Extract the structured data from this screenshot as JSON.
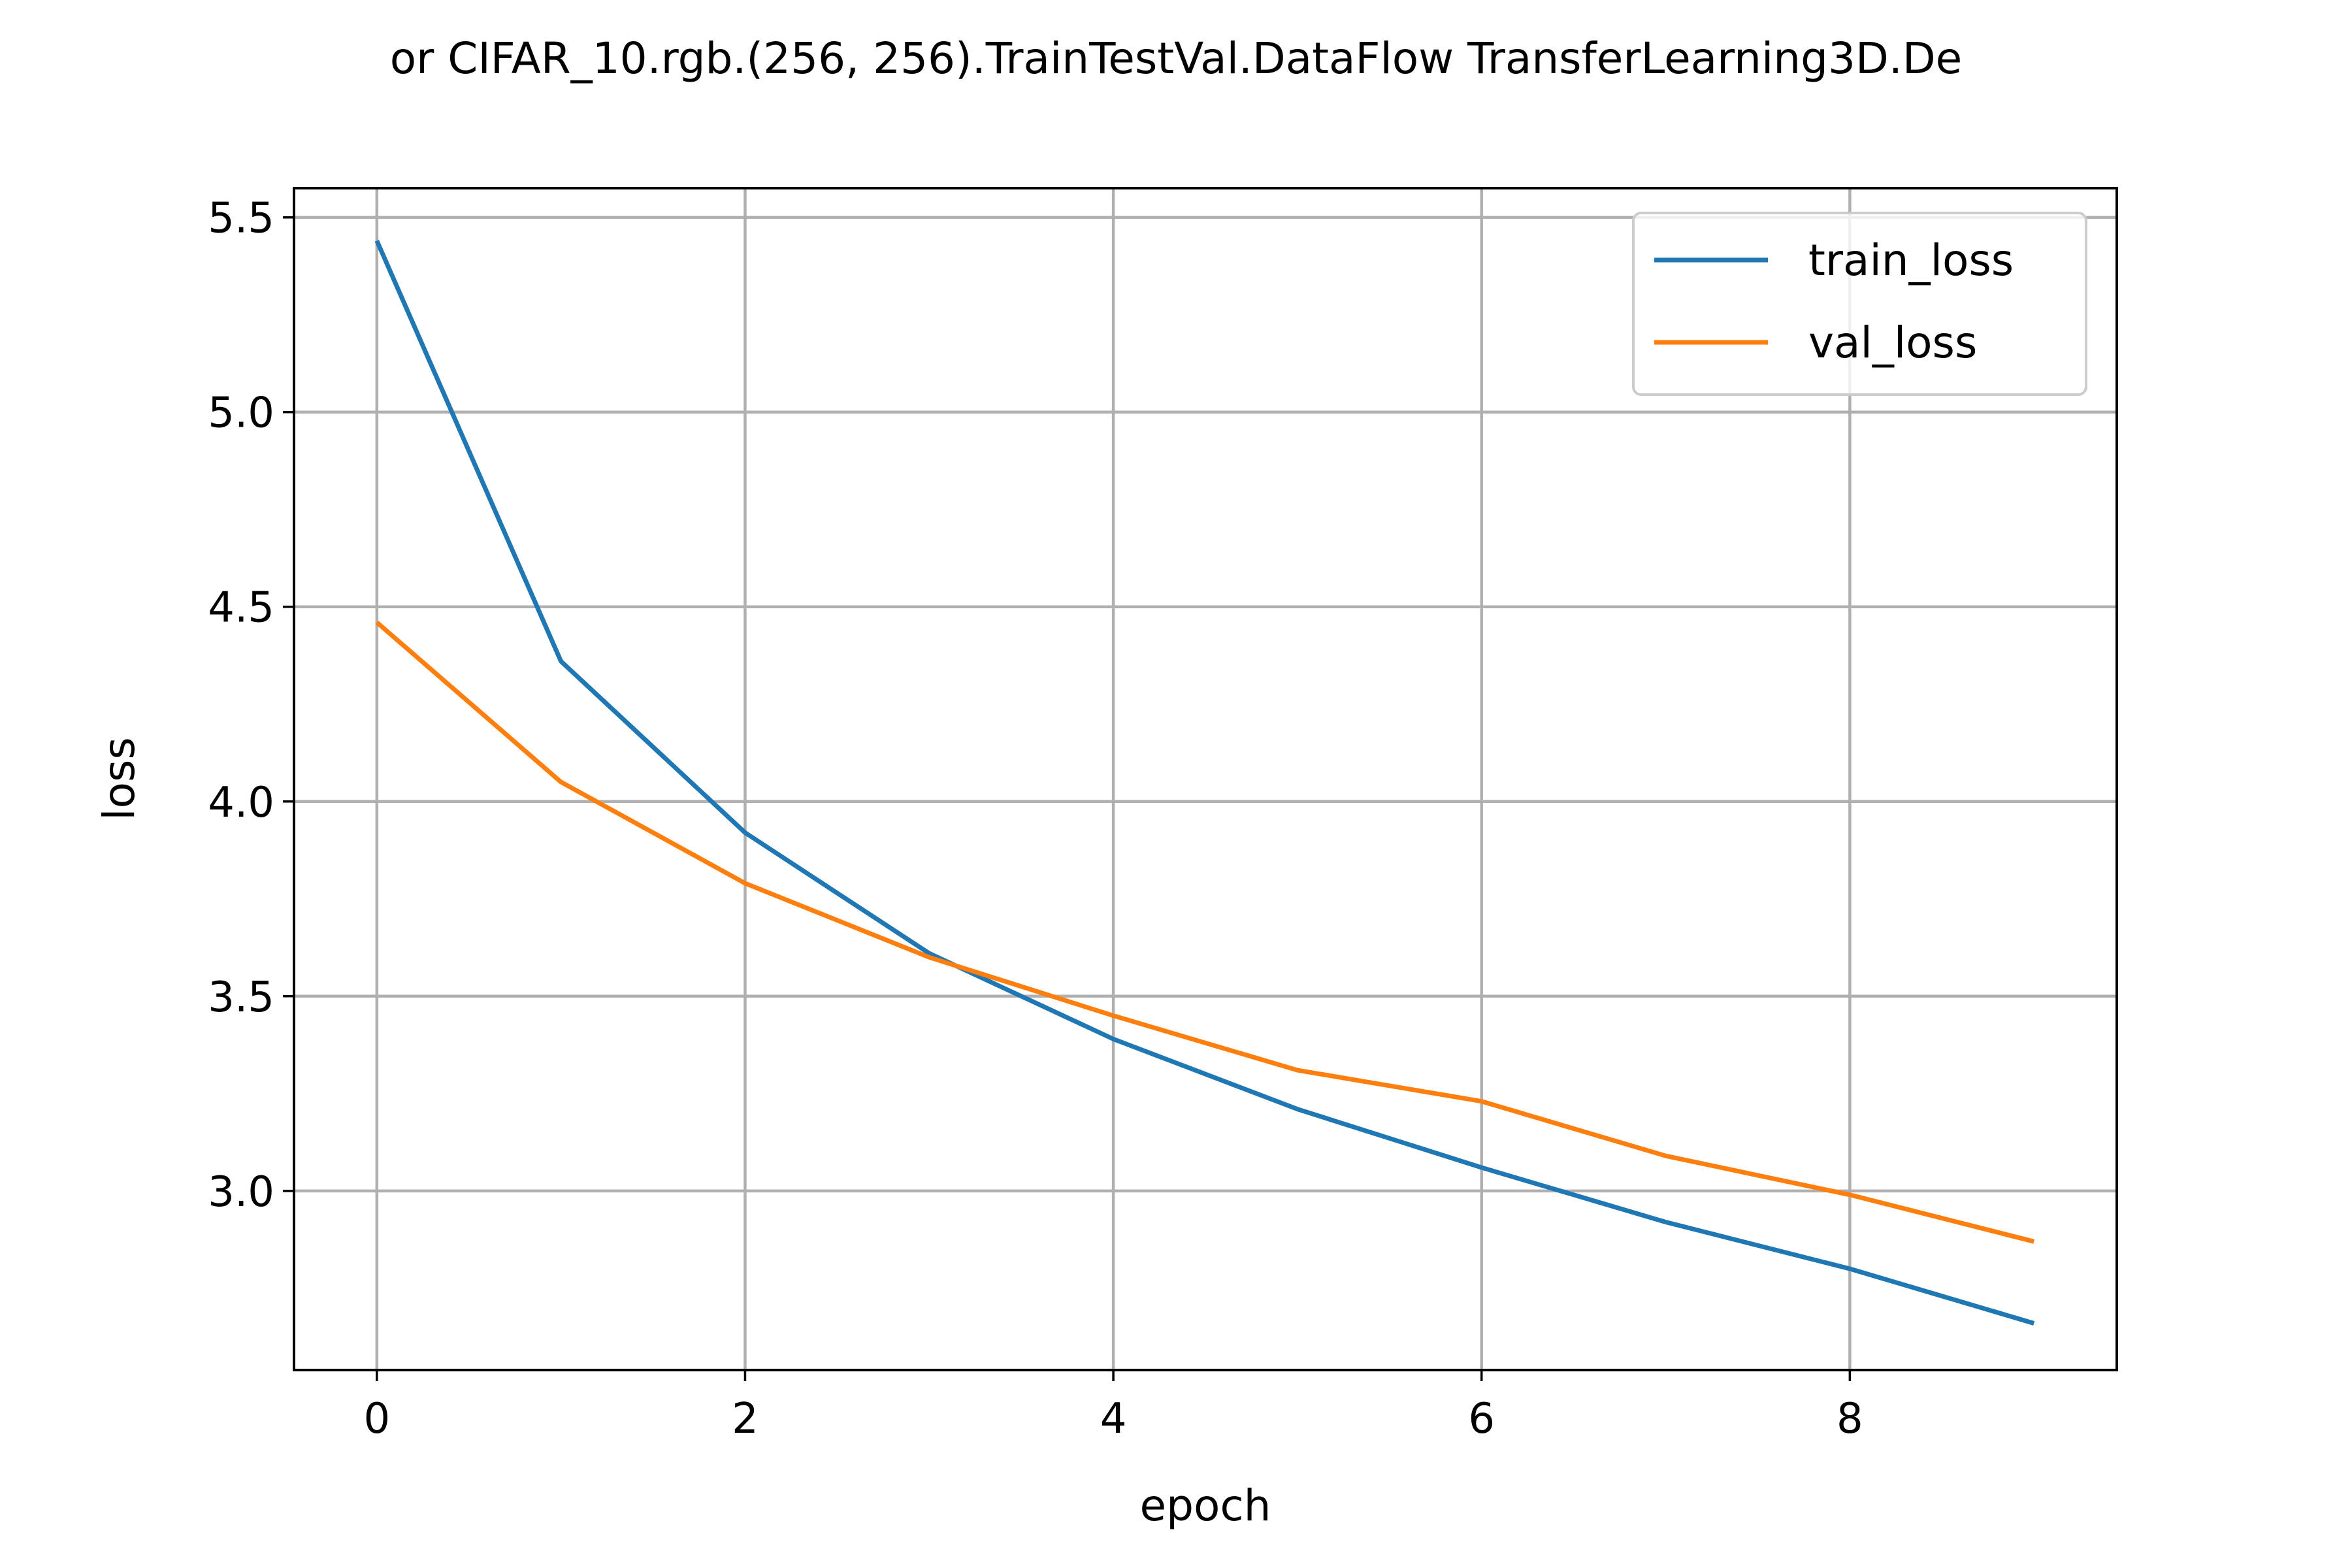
{
  "chart_data": {
    "type": "line",
    "title": "or CIFAR_10.rgb.(256, 256).TrainTestVal.DataFlow TransferLearning3D.De",
    "xlabel": "epoch",
    "ylabel": "loss",
    "xlim": [
      -0.45,
      9.45
    ],
    "ylim": [
      2.54,
      5.575
    ],
    "xticks": [
      0,
      2,
      4,
      6,
      8
    ],
    "yticks": [
      3.0,
      3.5,
      4.0,
      4.5,
      5.0,
      5.5
    ],
    "xtick_labels": [
      "0",
      "2",
      "4",
      "6",
      "8"
    ],
    "ytick_labels": [
      "3.0",
      "3.5",
      "4.0",
      "4.5",
      "5.0",
      "5.5"
    ],
    "grid": true,
    "legend_position": "top-right",
    "x": [
      0,
      1,
      2,
      3,
      4,
      5,
      6,
      7,
      8,
      9
    ],
    "series": [
      {
        "name": "train_loss",
        "color": "#1f77b4",
        "values": [
          5.44,
          4.36,
          3.92,
          3.61,
          3.39,
          3.21,
          3.06,
          2.92,
          2.8,
          2.66
        ]
      },
      {
        "name": "val_loss",
        "color": "#ff7f0e",
        "values": [
          4.46,
          4.05,
          3.79,
          3.6,
          3.45,
          3.31,
          3.23,
          3.09,
          2.99,
          2.87
        ]
      }
    ]
  }
}
